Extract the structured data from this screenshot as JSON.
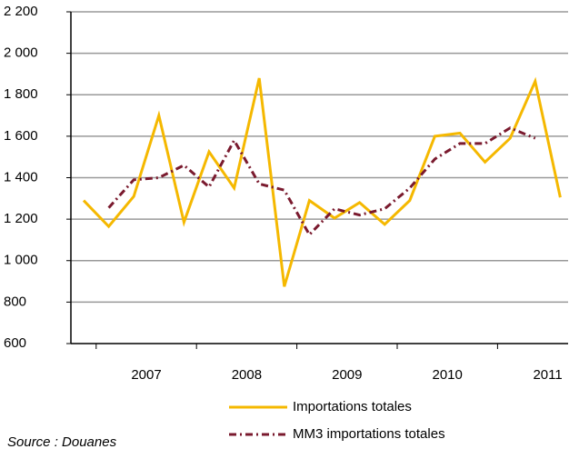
{
  "chart_data": {
    "type": "line",
    "categories": [
      null,
      null,
      null,
      null,
      null,
      null,
      null,
      null,
      null,
      null,
      null,
      null,
      null,
      null,
      null,
      null,
      null,
      null,
      null,
      null
    ],
    "year_labels": [
      "2007",
      "2008",
      "2009",
      "2010",
      "2011"
    ],
    "series": [
      {
        "name": "Importations totales",
        "color": "#f5b800",
        "style": "solid",
        "values": [
          1290,
          1165,
          1310,
          1700,
          1185,
          1525,
          1350,
          1880,
          875,
          1290,
          1205,
          1280,
          1175,
          1290,
          1600,
          1615,
          1475,
          1590,
          1865,
          1305
        ]
      },
      {
        "name": "MM3 importations totales",
        "color": "#7a1a2e",
        "style": "dashdot",
        "values": [
          null,
          1255,
          1390,
          1400,
          1460,
          1355,
          1580,
          1370,
          1340,
          1125,
          1250,
          1220,
          1250,
          1350,
          1490,
          1565,
          1565,
          1640,
          1590,
          null
        ]
      }
    ],
    "ylim": [
      600,
      2200
    ],
    "yticks": [
      {
        "value": 600,
        "label": "600"
      },
      {
        "value": 800,
        "label": "800"
      },
      {
        "value": 1000,
        "label": "1 000"
      },
      {
        "value": 1200,
        "label": "1 200"
      },
      {
        "value": 1400,
        "label": "1 400"
      },
      {
        "value": 1600,
        "label": "1 600"
      },
      {
        "value": 1800,
        "label": "1 800"
      },
      {
        "value": 2000,
        "label": "2 000"
      },
      {
        "value": 2200,
        "label": "2 200"
      }
    ],
    "grid": true,
    "source": "Source : Douanes"
  }
}
